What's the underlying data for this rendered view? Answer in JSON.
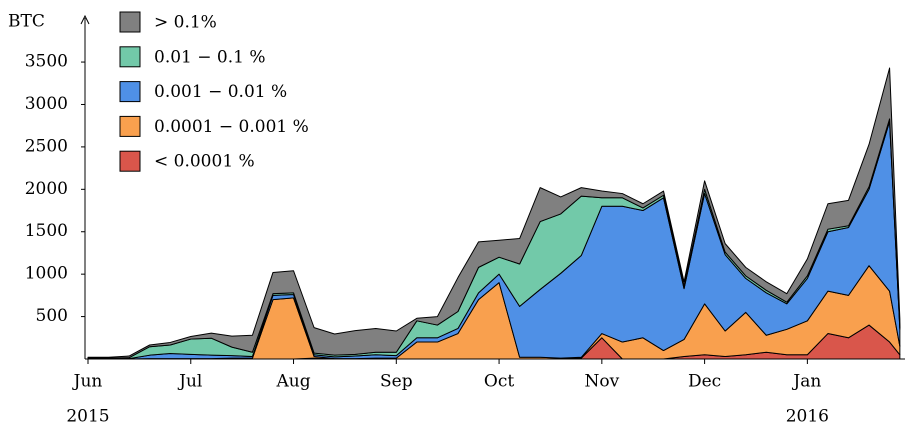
{
  "chart_data": {
    "type": "stacked_area",
    "y_label": "BTC",
    "year_labels": [
      {
        "x": 0,
        "label": "2015"
      },
      {
        "x": 7,
        "label": "2016"
      }
    ],
    "x": [
      0,
      0.2,
      0.4,
      0.6,
      0.8,
      1.0,
      1.2,
      1.4,
      1.6,
      1.8,
      2.0,
      2.2,
      2.4,
      2.6,
      2.8,
      3.0,
      3.2,
      3.4,
      3.6,
      3.8,
      4.0,
      4.2,
      4.4,
      4.6,
      4.8,
      5.0,
      5.2,
      5.4,
      5.6,
      5.8,
      6.0,
      6.2,
      6.4,
      6.6,
      6.8,
      7.0,
      7.2,
      7.4,
      7.6,
      7.8,
      7.9
    ],
    "series": [
      {
        "name": "> 0.1%",
        "color": "#808080",
        "values": [
          10,
          10,
          20,
          20,
          30,
          30,
          60,
          130,
          200,
          250,
          260,
          300,
          250,
          280,
          280,
          250,
          30,
          100,
          400,
          300,
          200,
          300,
          400,
          200,
          100,
          80,
          50,
          50,
          50,
          50,
          100,
          100,
          100,
          100,
          100,
          200,
          300,
          300,
          500,
          600,
          100
        ]
      },
      {
        "name": "0.01 − 0.1 %",
        "color": "#72c9a9",
        "values": [
          5,
          5,
          10,
          100,
          100,
          180,
          200,
          100,
          50,
          20,
          20,
          20,
          20,
          20,
          30,
          40,
          200,
          150,
          200,
          300,
          200,
          500,
          800,
          700,
          700,
          100,
          100,
          30,
          30,
          30,
          50,
          30,
          30,
          30,
          20,
          30,
          30,
          20,
          30,
          30,
          20
        ]
      },
      {
        "name": "0.001 − 0.01 %",
        "color": "#4f90e6",
        "values": [
          5,
          5,
          5,
          40,
          60,
          50,
          40,
          30,
          20,
          50,
          40,
          20,
          20,
          30,
          40,
          30,
          50,
          50,
          60,
          80,
          100,
          600,
          800,
          1000,
          1200,
          1500,
          1600,
          1500,
          1800,
          600,
          1300,
          900,
          400,
          500,
          300,
          500,
          700,
          800,
          900,
          2000,
          200
        ]
      },
      {
        "name": "0.0001 − 0.001 %",
        "color": "#f9a04e",
        "values": [
          0,
          0,
          0,
          5,
          5,
          5,
          5,
          10,
          10,
          700,
          720,
          20,
          5,
          5,
          10,
          10,
          200,
          200,
          300,
          700,
          900,
          20,
          20,
          10,
          10,
          50,
          200,
          250,
          100,
          200,
          600,
          300,
          500,
          200,
          300,
          400,
          500,
          500,
          700,
          600,
          100
        ]
      },
      {
        "name": "< 0.0001 %",
        "color": "#d9564b",
        "values": [
          0,
          0,
          0,
          0,
          0,
          0,
          0,
          0,
          0,
          0,
          0,
          10,
          0,
          0,
          0,
          0,
          0,
          0,
          0,
          0,
          0,
          0,
          0,
          0,
          10,
          250,
          0,
          0,
          0,
          30,
          50,
          30,
          50,
          80,
          50,
          50,
          300,
          250,
          400,
          200,
          50
        ]
      }
    ],
    "xlim": [
      0,
      7.95
    ],
    "xticks": [
      {
        "value": 0,
        "label": "Jun"
      },
      {
        "value": 1,
        "label": "Jul"
      },
      {
        "value": 2,
        "label": "Aug"
      },
      {
        "value": 3,
        "label": "Sep"
      },
      {
        "value": 4,
        "label": "Oct"
      },
      {
        "value": 5,
        "label": "Nov"
      },
      {
        "value": 6,
        "label": "Dec"
      },
      {
        "value": 7,
        "label": "Jan"
      }
    ],
    "ylim": [
      0,
      3760
    ],
    "yticks": [
      500,
      1000,
      1500,
      2000,
      2500,
      3000,
      3500
    ],
    "legend": "top-left"
  }
}
